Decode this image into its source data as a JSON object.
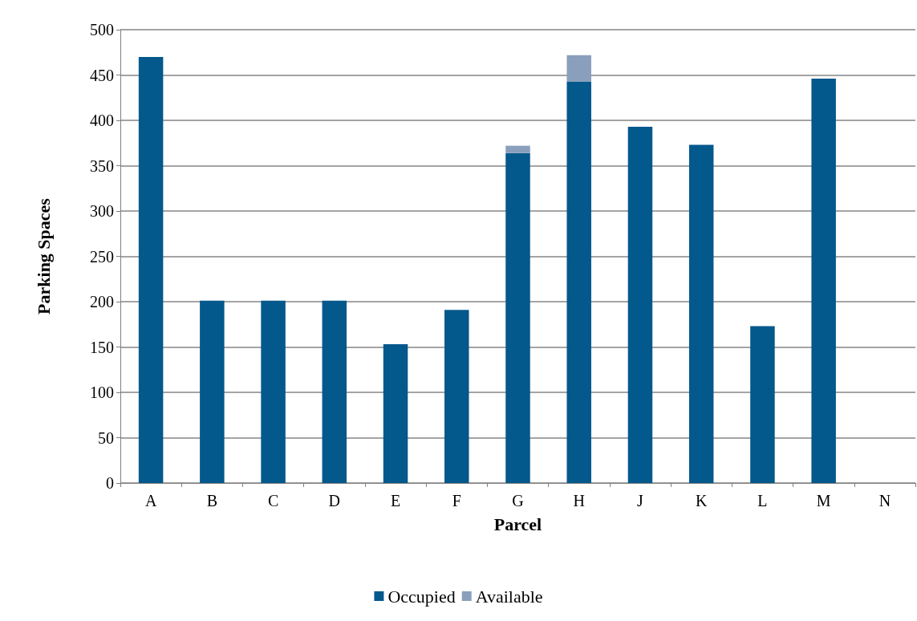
{
  "chart_data": {
    "type": "bar",
    "xlabel": "Parcel",
    "ylabel": "Parking Spaces",
    "categories": [
      "A",
      "B",
      "C",
      "D",
      "E",
      "F",
      "G",
      "H",
      "J",
      "K",
      "L",
      "M",
      "N"
    ],
    "stacked": true,
    "series": [
      {
        "name": "Occupied",
        "color": "#03588c",
        "values": [
          470,
          201,
          201,
          201,
          153,
          191,
          364,
          443,
          393,
          373,
          173,
          446,
          null
        ]
      },
      {
        "name": "Available",
        "color": "#8a9fbc",
        "values": [
          null,
          null,
          null,
          null,
          null,
          null,
          8,
          29,
          null,
          null,
          null,
          null,
          null
        ]
      }
    ],
    "ylim": [
      0,
      500
    ],
    "yticks": [
      0,
      50,
      100,
      150,
      200,
      250,
      300,
      350,
      400,
      450,
      500
    ],
    "grid": "y",
    "legend": "bottom"
  }
}
